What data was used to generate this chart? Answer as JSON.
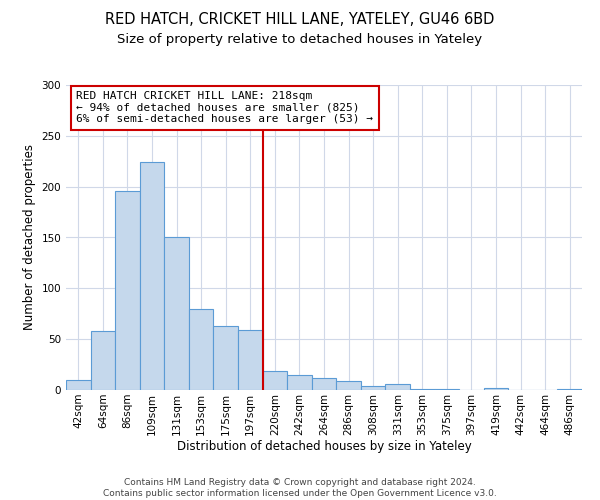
{
  "title": "RED HATCH, CRICKET HILL LANE, YATELEY, GU46 6BD",
  "subtitle": "Size of property relative to detached houses in Yateley",
  "xlabel": "Distribution of detached houses by size in Yateley",
  "ylabel": "Number of detached properties",
  "bar_labels": [
    "42sqm",
    "64sqm",
    "86sqm",
    "109sqm",
    "131sqm",
    "153sqm",
    "175sqm",
    "197sqm",
    "220sqm",
    "242sqm",
    "264sqm",
    "286sqm",
    "308sqm",
    "331sqm",
    "353sqm",
    "375sqm",
    "397sqm",
    "419sqm",
    "442sqm",
    "464sqm",
    "486sqm"
  ],
  "bar_values": [
    10,
    58,
    196,
    224,
    150,
    80,
    63,
    59,
    19,
    15,
    12,
    9,
    4,
    6,
    1,
    1,
    0,
    2,
    0,
    0,
    1
  ],
  "bar_color": "#c5d8ec",
  "bar_edge_color": "#5b9bd5",
  "vline_index": 8,
  "vline_color": "#cc0000",
  "annotation_line1": "RED HATCH CRICKET HILL LANE: 218sqm",
  "annotation_line2": "← 94% of detached houses are smaller (825)",
  "annotation_line3": "6% of semi-detached houses are larger (53) →",
  "annotation_box_color": "#cc0000",
  "annotation_box_bg": "#ffffff",
  "ylim": [
    0,
    300
  ],
  "yticks": [
    0,
    50,
    100,
    150,
    200,
    250,
    300
  ],
  "footer_line1": "Contains HM Land Registry data © Crown copyright and database right 2024.",
  "footer_line2": "Contains public sector information licensed under the Open Government Licence v3.0.",
  "bg_color": "#ffffff",
  "grid_color": "#d0d8e8",
  "title_fontsize": 10.5,
  "subtitle_fontsize": 9.5,
  "axis_label_fontsize": 8.5,
  "tick_fontsize": 7.5,
  "annotation_fontsize": 8,
  "footer_fontsize": 6.5
}
